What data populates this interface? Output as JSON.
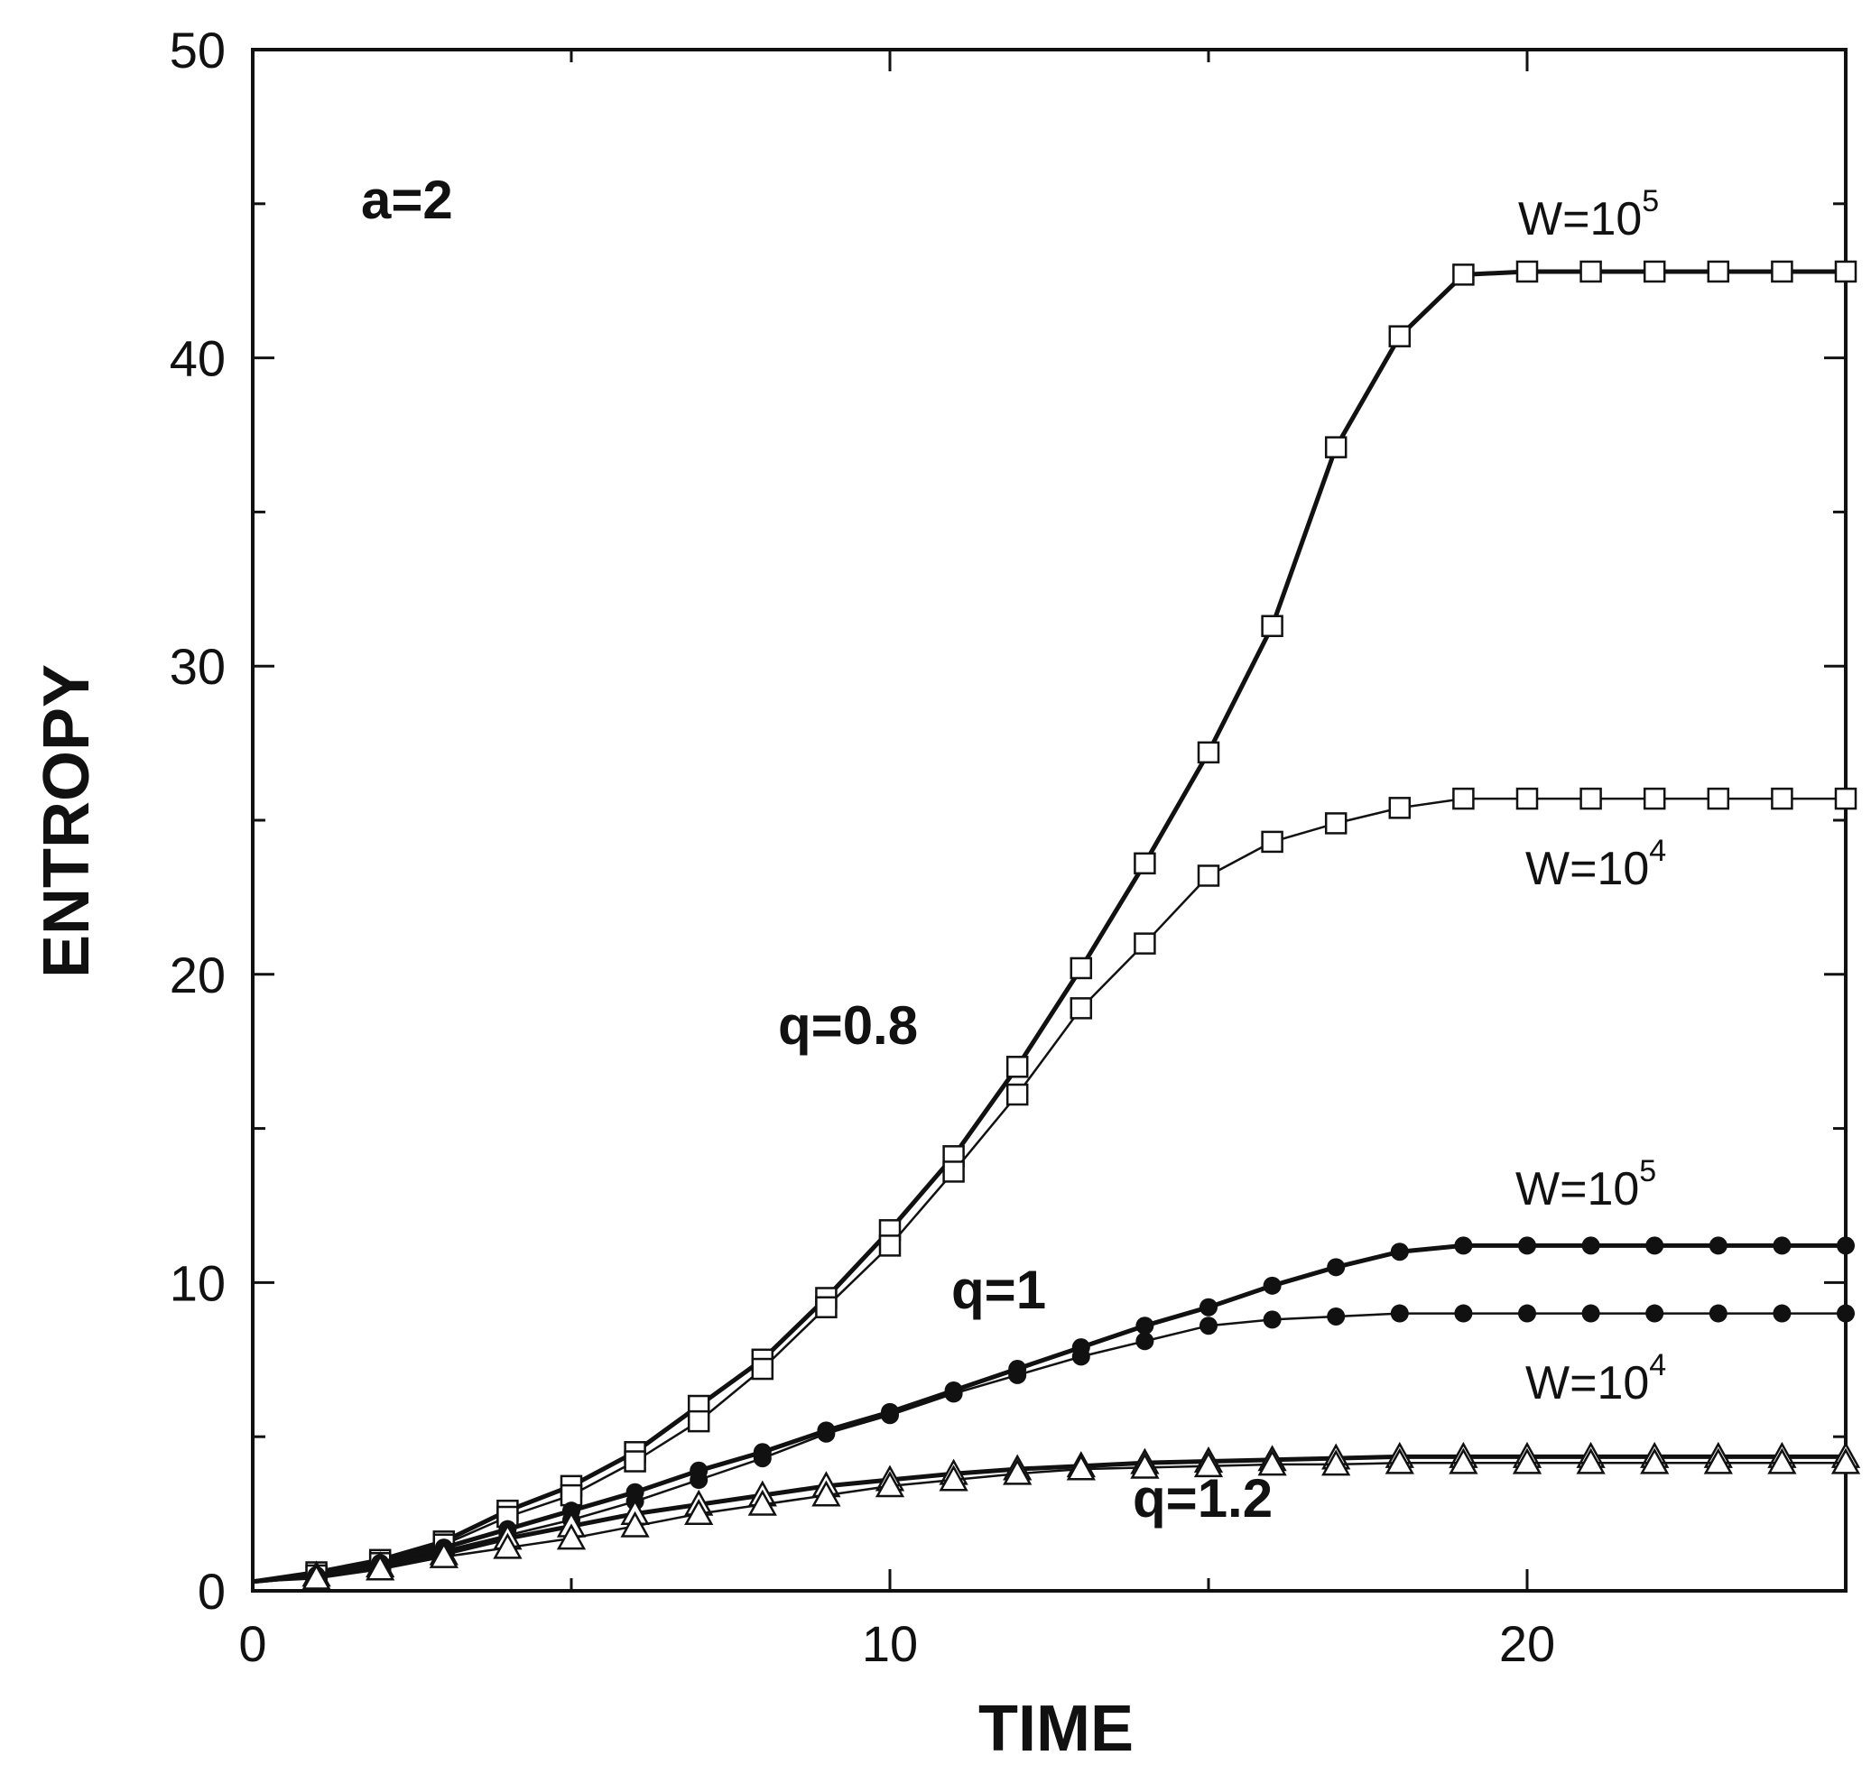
{
  "chart_data": {
    "type": "line",
    "title": "",
    "xlabel": "TIME",
    "ylabel": "ENTROPY",
    "xlim": [
      0,
      25
    ],
    "ylim": [
      0,
      50
    ],
    "xticks": [
      0,
      10,
      20
    ],
    "yticks": [
      0,
      10,
      20,
      30,
      40,
      50
    ],
    "grid": false,
    "annotations": {
      "panel": "a=2",
      "q08": "q=0.8",
      "q1": "q=1",
      "q12": "q=1.2",
      "w5_top": "W=10",
      "w5_top_exp": "5",
      "w4_top": "W=10",
      "w4_top_exp": "4",
      "w5_mid": "W=10",
      "w5_mid_exp": "5",
      "w4_mid": "W=10",
      "w4_mid_exp": "4"
    },
    "series": [
      {
        "name": "q=0.8, W=10^5",
        "marker": "square",
        "weight": "heavy",
        "x": [
          0,
          1,
          2,
          3,
          4,
          5,
          6,
          7,
          8,
          9,
          10,
          11,
          12,
          13,
          14,
          15,
          16,
          17,
          18,
          19,
          20,
          21,
          22,
          23,
          24,
          25
        ],
        "y": [
          0.3,
          0.6,
          1.0,
          1.6,
          2.6,
          3.4,
          4.5,
          6.0,
          7.5,
          9.5,
          11.7,
          14.1,
          17.0,
          20.2,
          23.6,
          27.2,
          31.3,
          37.1,
          40.7,
          42.7,
          42.8,
          42.8,
          42.8,
          42.8,
          42.8,
          42.8
        ]
      },
      {
        "name": "q=0.8, W=10^4",
        "marker": "square",
        "weight": "light",
        "x": [
          0,
          1,
          2,
          3,
          4,
          5,
          6,
          7,
          8,
          9,
          10,
          11,
          12,
          13,
          14,
          15,
          16,
          17,
          18,
          19,
          20,
          21,
          22,
          23,
          24,
          25
        ],
        "y": [
          0.3,
          0.5,
          0.9,
          1.5,
          2.4,
          3.1,
          4.2,
          5.5,
          7.2,
          9.2,
          11.2,
          13.6,
          16.1,
          18.9,
          21.0,
          23.2,
          24.3,
          24.9,
          25.4,
          25.7,
          25.7,
          25.7,
          25.7,
          25.7,
          25.7,
          25.7
        ]
      },
      {
        "name": "q=1, W=10^5",
        "marker": "filled-circle",
        "weight": "heavy",
        "x": [
          0,
          1,
          2,
          3,
          4,
          5,
          6,
          7,
          8,
          9,
          10,
          11,
          12,
          13,
          14,
          15,
          16,
          17,
          18,
          19,
          20,
          21,
          22,
          23,
          24,
          25
        ],
        "y": [
          0.3,
          0.5,
          0.9,
          1.4,
          2.0,
          2.6,
          3.2,
          3.9,
          4.5,
          5.2,
          5.8,
          6.5,
          7.2,
          7.9,
          8.6,
          9.2,
          9.9,
          10.5,
          11.0,
          11.2,
          11.2,
          11.2,
          11.2,
          11.2,
          11.2,
          11.2
        ]
      },
      {
        "name": "q=1, W=10^4",
        "marker": "filled-circle",
        "weight": "light",
        "x": [
          0,
          1,
          2,
          3,
          4,
          5,
          6,
          7,
          8,
          9,
          10,
          11,
          12,
          13,
          14,
          15,
          16,
          17,
          18,
          19,
          20,
          21,
          22,
          23,
          24,
          25
        ],
        "y": [
          0.3,
          0.5,
          0.8,
          1.3,
          1.8,
          2.3,
          2.9,
          3.6,
          4.3,
          5.1,
          5.7,
          6.4,
          7.0,
          7.6,
          8.1,
          8.6,
          8.8,
          8.9,
          9.0,
          9.0,
          9.0,
          9.0,
          9.0,
          9.0,
          9.0,
          9.0
        ]
      },
      {
        "name": "q=1.2, W=10^5",
        "marker": "triangle",
        "weight": "heavy",
        "x": [
          0,
          1,
          2,
          3,
          4,
          5,
          6,
          7,
          8,
          9,
          10,
          11,
          12,
          13,
          14,
          15,
          16,
          17,
          18,
          19,
          20,
          21,
          22,
          23,
          24,
          25
        ],
        "y": [
          0.3,
          0.5,
          0.8,
          1.2,
          1.7,
          2.1,
          2.5,
          2.8,
          3.1,
          3.4,
          3.6,
          3.8,
          3.95,
          4.05,
          4.15,
          4.2,
          4.25,
          4.3,
          4.35,
          4.35,
          4.35,
          4.35,
          4.35,
          4.35,
          4.35,
          4.35
        ]
      },
      {
        "name": "q=1.2, W=10^4",
        "marker": "triangle",
        "weight": "light",
        "x": [
          0,
          1,
          2,
          3,
          4,
          5,
          6,
          7,
          8,
          9,
          10,
          11,
          12,
          13,
          14,
          15,
          16,
          17,
          18,
          19,
          20,
          21,
          22,
          23,
          24,
          25
        ],
        "y": [
          0.3,
          0.4,
          0.7,
          1.1,
          1.4,
          1.7,
          2.1,
          2.5,
          2.8,
          3.1,
          3.4,
          3.6,
          3.8,
          3.95,
          4.0,
          4.05,
          4.1,
          4.1,
          4.15,
          4.15,
          4.15,
          4.15,
          4.15,
          4.15,
          4.15,
          4.15
        ]
      }
    ]
  }
}
